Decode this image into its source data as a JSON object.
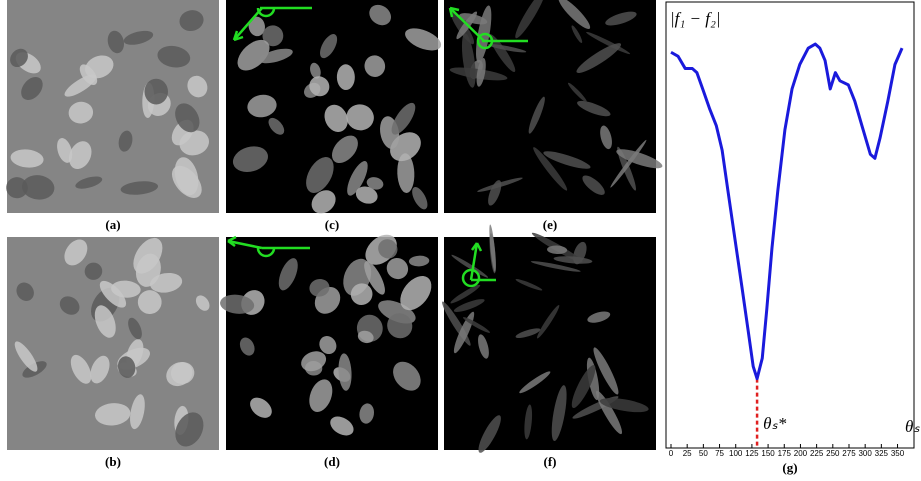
{
  "panels": [
    {
      "label": "(a)"
    },
    {
      "label": "(c)"
    },
    {
      "label": "(e)"
    },
    {
      "label": "(b)"
    },
    {
      "label": "(d)"
    },
    {
      "label": "(f)"
    }
  ],
  "chart_data": {
    "type": "line",
    "label": "(g)",
    "y_label": "|f₁ − f₂|",
    "x_label": "θₛ",
    "annotation": "θₛ*",
    "annotation_x": 133,
    "xlim": [
      0,
      360
    ],
    "ylim": [
      0,
      1
    ],
    "xticks": [
      0,
      25,
      50,
      75,
      100,
      125,
      150,
      175,
      200,
      225,
      250,
      275,
      300,
      325,
      350
    ],
    "x": [
      0,
      11,
      22,
      33,
      40,
      49,
      60,
      70,
      79,
      88,
      99,
      110,
      119,
      127,
      133,
      141,
      148,
      156,
      165,
      176,
      187,
      199,
      212,
      223,
      230,
      238,
      246,
      254,
      261,
      274,
      284,
      295,
      308,
      315,
      323,
      335,
      346,
      357
    ],
    "series": [
      {
        "name": "|f₁ − f₂|",
        "color": "#1a1adc",
        "values": [
          0.97,
          0.96,
          0.93,
          0.93,
          0.92,
          0.88,
          0.83,
          0.79,
          0.73,
          0.63,
          0.51,
          0.39,
          0.29,
          0.2,
          0.17,
          0.22,
          0.34,
          0.49,
          0.63,
          0.78,
          0.88,
          0.94,
          0.98,
          0.99,
          0.98,
          0.95,
          0.88,
          0.92,
          0.9,
          0.89,
          0.85,
          0.79,
          0.72,
          0.71,
          0.76,
          0.85,
          0.94,
          0.98
        ]
      }
    ]
  }
}
